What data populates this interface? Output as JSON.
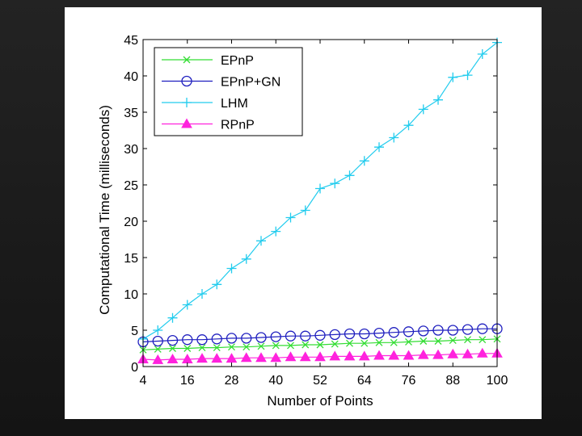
{
  "chart_data": {
    "type": "line",
    "title": "",
    "xlabel": "Number of Points",
    "ylabel": "Computational Time (milliseconds)",
    "xlim": [
      4,
      100
    ],
    "ylim": [
      0,
      45
    ],
    "xticks": [
      4,
      16,
      28,
      40,
      52,
      64,
      76,
      88,
      100
    ],
    "yticks": [
      0,
      5,
      10,
      15,
      20,
      25,
      30,
      35,
      40,
      45
    ],
    "grid": false,
    "legend_position": "top-left",
    "x": [
      4,
      8,
      12,
      16,
      20,
      24,
      28,
      32,
      36,
      40,
      44,
      48,
      52,
      56,
      60,
      64,
      68,
      72,
      76,
      80,
      84,
      88,
      92,
      96,
      100
    ],
    "series": [
      {
        "name": "EPnP",
        "color": "#33dd33",
        "marker": "x",
        "values": [
          2.3,
          2.4,
          2.5,
          2.5,
          2.6,
          2.6,
          2.7,
          2.7,
          2.8,
          2.9,
          2.9,
          3.0,
          3.0,
          3.1,
          3.2,
          3.2,
          3.3,
          3.3,
          3.4,
          3.5,
          3.5,
          3.6,
          3.7,
          3.7,
          3.8
        ]
      },
      {
        "name": "EPnP+GN",
        "color": "#1f1fbf",
        "marker": "circle",
        "values": [
          3.4,
          3.5,
          3.6,
          3.7,
          3.7,
          3.8,
          3.9,
          3.9,
          4.0,
          4.1,
          4.2,
          4.2,
          4.3,
          4.4,
          4.5,
          4.5,
          4.6,
          4.7,
          4.8,
          4.9,
          5.0,
          5.0,
          5.1,
          5.2,
          5.2
        ]
      },
      {
        "name": "LHM",
        "color": "#22ccee",
        "marker": "plus",
        "values": [
          3.8,
          5.0,
          6.7,
          8.5,
          10.0,
          11.3,
          13.5,
          14.8,
          17.3,
          18.6,
          20.5,
          21.5,
          24.5,
          25.2,
          26.3,
          28.3,
          30.2,
          31.5,
          33.2,
          35.4,
          36.7,
          39.8,
          40.1,
          43.0,
          44.6
        ]
      },
      {
        "name": "RPnP",
        "color": "#ff22dd",
        "marker": "triangle",
        "values": [
          1.0,
          0.9,
          1.0,
          1.0,
          1.1,
          1.1,
          1.1,
          1.2,
          1.2,
          1.2,
          1.3,
          1.3,
          1.3,
          1.4,
          1.4,
          1.4,
          1.5,
          1.5,
          1.5,
          1.6,
          1.6,
          1.7,
          1.7,
          1.8,
          1.8
        ]
      }
    ]
  }
}
